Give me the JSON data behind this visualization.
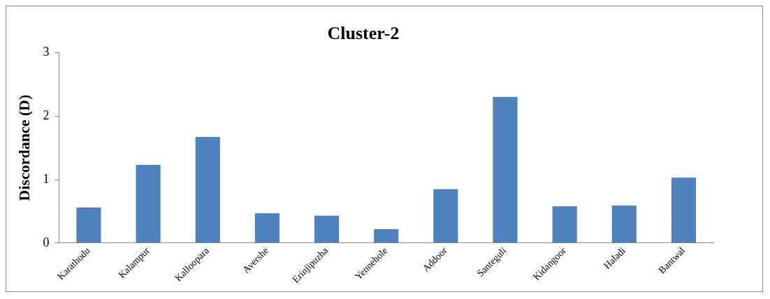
{
  "chart_data": {
    "type": "bar",
    "title": "Cluster-2",
    "ylabel": "Discordance (D)",
    "categories": [
      "Karathodu",
      "Kalampur",
      "Kalloopara",
      "Avershe",
      "Erinjipuzha",
      "Yennehole",
      "Addoor",
      "Santeguli",
      "Kidangoor",
      "Haladi",
      "Bantwal"
    ],
    "values": [
      0.56,
      1.23,
      1.67,
      0.47,
      0.43,
      0.22,
      0.85,
      2.3,
      0.58,
      0.59,
      1.03
    ],
    "color": "#4f81bd",
    "ylim": [
      0,
      3
    ],
    "yticks": [
      0,
      1,
      2,
      3
    ],
    "grid": false,
    "legend": false
  }
}
